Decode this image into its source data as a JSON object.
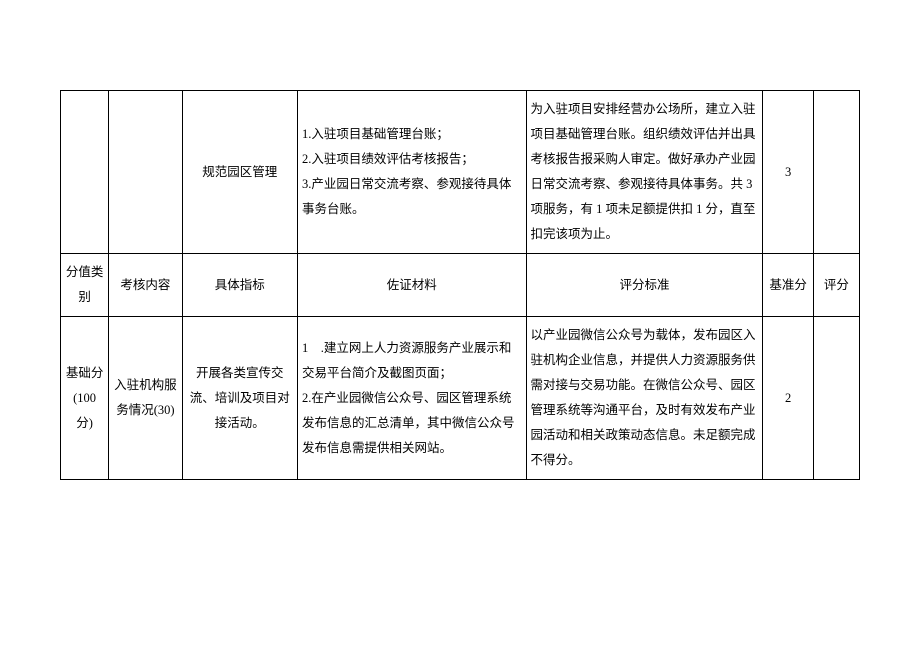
{
  "table": {
    "row1": {
      "col3": "规范园区管理",
      "col4": "1.入驻项目基础管理台账；\n2.入驻项目绩效评估考核报告；\n3.产业园日常交流考察、参观接待具体事务台账。",
      "col5": "为入驻项目安排经营办公场所，建立入驻项目基础管理台账。组织绩效评估并出具考核报告报采购人审定。做好承办产业园日常交流考察、参观接待具体事务。共 3 项服务，有 1 项未足额提供扣 1 分，直至扣完该项为止。",
      "col6": "3"
    },
    "header": {
      "col1": "分值类别",
      "col2": "考核内容",
      "col3": "具体指标",
      "col4": "佐证材料",
      "col5": "评分标准",
      "col6": "基准分",
      "col7": "评分"
    },
    "row3": {
      "col1": "基础分(100 分)",
      "col2": "入驻机构服务情况(30)",
      "col3": "开展各类宣传交流、培训及项目对接活动。",
      "col4": "1　.建立网上人力资源服务产业展示和交易平台简介及截图页面；\n2.在产业园微信公众号、园区管理系统发布信息的汇总清单，其中微信公众号发布信息需提供相关网站。",
      "col5": "以产业园微信公众号为载体，发布园区入驻机构企业信息，并提供人力资源服务供需对接与交易功能。在微信公众号、园区管理系统等沟通平台，及时有效发布产业园活动和相关政策动态信息。未足额完成不得分。",
      "col6": "2"
    }
  }
}
